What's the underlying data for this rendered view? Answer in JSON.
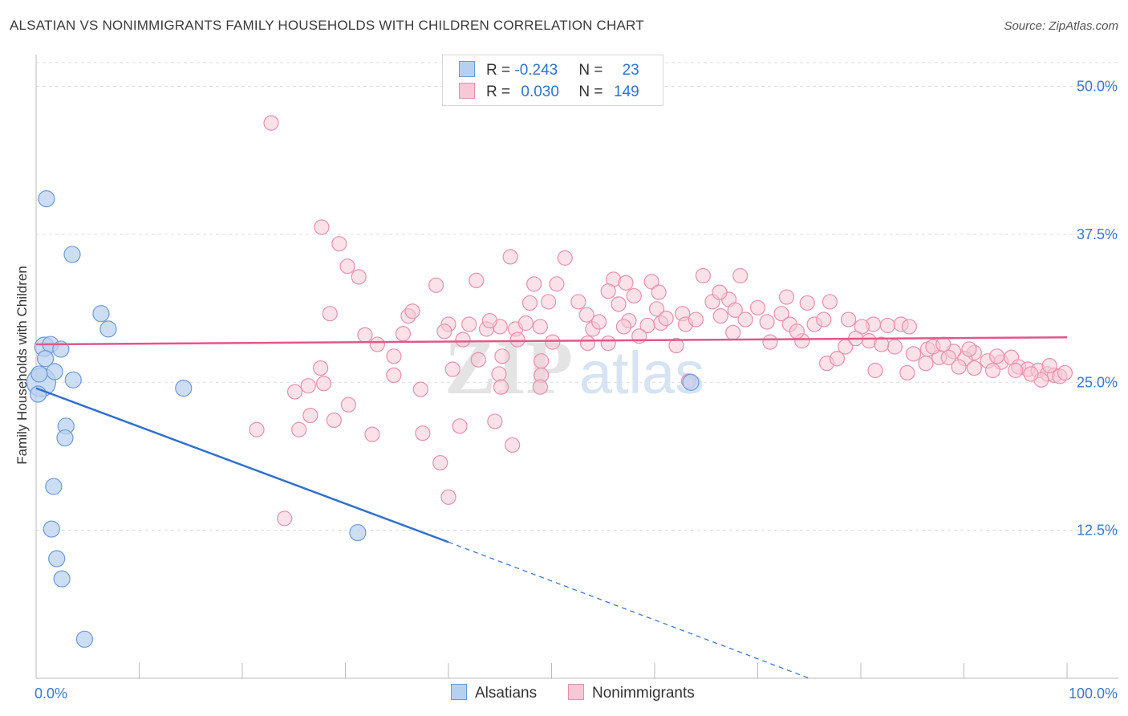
{
  "title": "ALSATIAN VS NONIMMIGRANTS FAMILY HOUSEHOLDS WITH CHILDREN CORRELATION CHART",
  "source": "Source: ZipAtlas.com",
  "colors": {
    "alsatians_fill": "#b8d0f0",
    "alsatians_stroke": "#6a9ad8",
    "alsatians_line": "#2f6fd0",
    "nonimm_fill": "#f8c8d6",
    "nonimm_stroke": "#e890ac",
    "nonimm_line": "#e0588a",
    "axis_label": "#3a78c8",
    "grid": "#dddddd"
  },
  "legend": {
    "row1": {
      "r_label": "R = ",
      "r_value": "-0.243",
      "n_label": "N = ",
      "n_value": "23"
    },
    "row2": {
      "r_label": "R = ",
      "r_value": "0.030",
      "n_label": "N = ",
      "n_value": "149"
    }
  },
  "bottom_legend": {
    "series1": "Alsatians",
    "series2": "Nonimmigrants"
  },
  "watermark": {
    "zip": "ZIP",
    "atlas": "atlas"
  },
  "chart_data": {
    "type": "scatter",
    "title": "ALSATIAN VS NONIMMIGRANTS FAMILY HOUSEHOLDS WITH CHILDREN CORRELATION CHART",
    "xlabel": "",
    "ylabel": "Family Households with Children",
    "xlim": [
      0,
      100
    ],
    "ylim": [
      0,
      52
    ],
    "x_tick_labels": [
      "0.0%",
      "100.0%"
    ],
    "y_ticks": [
      12.5,
      25.0,
      37.5,
      50.0
    ],
    "y_tick_labels": [
      "12.5%",
      "25.0%",
      "37.5%",
      "50.0%"
    ],
    "grid": true,
    "series": [
      {
        "name": "Alsatians",
        "R": -0.243,
        "N": 23,
        "trend": {
          "x0": 0,
          "y0": 24.5,
          "x1": 40,
          "y1": 11.5,
          "dashed_to_x": 75,
          "dashed_to_y": 0
        },
        "points": [
          [
            0.5,
            25.0,
            18
          ],
          [
            1.0,
            40.5,
            10
          ],
          [
            3.5,
            35.8,
            10
          ],
          [
            6.3,
            30.8,
            10
          ],
          [
            7.0,
            29.5,
            10
          ],
          [
            0.8,
            28.0,
            12
          ],
          [
            1.4,
            28.2,
            10
          ],
          [
            2.4,
            27.8,
            10
          ],
          [
            0.9,
            27.0,
            10
          ],
          [
            1.8,
            25.9,
            10
          ],
          [
            3.6,
            25.2,
            10
          ],
          [
            0.3,
            25.7,
            10
          ],
          [
            14.3,
            24.5,
            10
          ],
          [
            0.2,
            24.0,
            10
          ],
          [
            2.9,
            21.3,
            10
          ],
          [
            2.8,
            20.3,
            10
          ],
          [
            1.7,
            16.2,
            10
          ],
          [
            1.5,
            12.6,
            10
          ],
          [
            2.0,
            10.1,
            10
          ],
          [
            2.5,
            8.4,
            10
          ],
          [
            4.7,
            3.3,
            10
          ],
          [
            31.2,
            12.3,
            10
          ],
          [
            63.5,
            25.0,
            10
          ]
        ]
      },
      {
        "name": "Nonimmigrants",
        "R": 0.03,
        "N": 149,
        "trend": {
          "x0": 0,
          "y0": 28.2,
          "x1": 100,
          "y1": 28.8
        },
        "points": [
          [
            22.8,
            46.9
          ],
          [
            27.7,
            38.1
          ],
          [
            29.4,
            36.7
          ],
          [
            30.2,
            34.8
          ],
          [
            31.3,
            33.9
          ],
          [
            46.0,
            35.6
          ],
          [
            51.3,
            35.5
          ],
          [
            38.8,
            33.2
          ],
          [
            42.7,
            33.6
          ],
          [
            48.3,
            33.3
          ],
          [
            50.5,
            33.3
          ],
          [
            56.0,
            33.7
          ],
          [
            59.7,
            33.5
          ],
          [
            64.7,
            34.0
          ],
          [
            68.3,
            34.0
          ],
          [
            28.5,
            30.8
          ],
          [
            36.1,
            30.6
          ],
          [
            40.0,
            29.9
          ],
          [
            35.6,
            29.1
          ],
          [
            43.7,
            29.5
          ],
          [
            45.0,
            29.7
          ],
          [
            47.9,
            31.7
          ],
          [
            49.7,
            31.8
          ],
          [
            53.4,
            30.7
          ],
          [
            55.5,
            32.7
          ],
          [
            56.5,
            31.6
          ],
          [
            57.5,
            30.2
          ],
          [
            60.2,
            31.2
          ],
          [
            60.6,
            30.0
          ],
          [
            62.7,
            30.8
          ],
          [
            65.6,
            31.8
          ],
          [
            67.2,
            32.0
          ],
          [
            67.8,
            31.1
          ],
          [
            70.0,
            31.3
          ],
          [
            72.3,
            30.8
          ],
          [
            74.8,
            31.7
          ],
          [
            77.0,
            31.8
          ],
          [
            78.8,
            30.3
          ],
          [
            81.2,
            29.9
          ],
          [
            83.9,
            29.9
          ],
          [
            84.7,
            29.7
          ],
          [
            39.6,
            29.3
          ],
          [
            42.0,
            29.9
          ],
          [
            46.5,
            29.5
          ],
          [
            47.5,
            30.0
          ],
          [
            48.9,
            29.7
          ],
          [
            54.0,
            29.5
          ],
          [
            54.6,
            30.1
          ],
          [
            57.0,
            29.7
          ],
          [
            59.3,
            29.8
          ],
          [
            61.1,
            30.4
          ],
          [
            63.0,
            29.9
          ],
          [
            66.4,
            30.6
          ],
          [
            68.8,
            30.3
          ],
          [
            70.9,
            30.1
          ],
          [
            73.1,
            29.9
          ],
          [
            75.5,
            29.9
          ],
          [
            76.4,
            30.3
          ],
          [
            80.1,
            29.7
          ],
          [
            82.6,
            29.8
          ],
          [
            33.1,
            28.2
          ],
          [
            41.4,
            28.6
          ],
          [
            46.7,
            28.6
          ],
          [
            53.5,
            28.3
          ],
          [
            55.5,
            28.3
          ],
          [
            62.1,
            28.1
          ],
          [
            71.2,
            28.4
          ],
          [
            74.3,
            28.5
          ],
          [
            78.5,
            28.0
          ],
          [
            80.8,
            28.5
          ],
          [
            83.3,
            28.0
          ],
          [
            86.5,
            27.8
          ],
          [
            89.0,
            27.6
          ],
          [
            91.0,
            27.5
          ],
          [
            34.7,
            27.2
          ],
          [
            45.2,
            27.2
          ],
          [
            49.0,
            26.8
          ],
          [
            85.1,
            27.4
          ],
          [
            86.3,
            26.6
          ],
          [
            87.6,
            27.1
          ],
          [
            88.5,
            27.1
          ],
          [
            90.1,
            27.0
          ],
          [
            92.3,
            26.8
          ],
          [
            93.6,
            26.7
          ],
          [
            94.6,
            27.1
          ],
          [
            27.6,
            26.2
          ],
          [
            34.7,
            25.6
          ],
          [
            42.9,
            26.9
          ],
          [
            44.9,
            25.7
          ],
          [
            49.0,
            25.6
          ],
          [
            76.7,
            26.6
          ],
          [
            81.4,
            26.0
          ],
          [
            84.5,
            25.8
          ],
          [
            89.5,
            26.3
          ],
          [
            91.0,
            26.2
          ],
          [
            92.8,
            26.0
          ],
          [
            95.3,
            26.3
          ],
          [
            96.2,
            26.1
          ],
          [
            97.2,
            26.0
          ],
          [
            98.1,
            25.7
          ],
          [
            98.8,
            25.6
          ],
          [
            99.3,
            25.5
          ],
          [
            26.4,
            24.7
          ],
          [
            27.9,
            24.9
          ],
          [
            25.1,
            24.2
          ],
          [
            37.3,
            24.4
          ],
          [
            45.1,
            24.6
          ],
          [
            48.9,
            24.6
          ],
          [
            30.3,
            23.1
          ],
          [
            26.6,
            22.2
          ],
          [
            21.4,
            21.0
          ],
          [
            25.5,
            21.0
          ],
          [
            28.9,
            21.8
          ],
          [
            41.1,
            21.3
          ],
          [
            44.5,
            21.7
          ],
          [
            32.6,
            20.6
          ],
          [
            37.5,
            20.7
          ],
          [
            46.2,
            19.7
          ],
          [
            39.2,
            18.2
          ],
          [
            40.0,
            15.3
          ],
          [
            24.1,
            13.5
          ],
          [
            63.3,
            25.1
          ],
          [
            97.5,
            25.2
          ],
          [
            96.5,
            25.7
          ],
          [
            95.0,
            26.0
          ],
          [
            98.3,
            26.4
          ],
          [
            99.8,
            25.8
          ],
          [
            58.5,
            28.9
          ],
          [
            64.0,
            30.3
          ],
          [
            52.6,
            31.8
          ],
          [
            57.2,
            33.4
          ],
          [
            66.3,
            32.6
          ],
          [
            72.8,
            32.2
          ],
          [
            60.4,
            32.6
          ],
          [
            50.1,
            28.4
          ],
          [
            40.4,
            26.1
          ],
          [
            31.9,
            29.0
          ],
          [
            44.0,
            30.2
          ],
          [
            77.7,
            27.0
          ],
          [
            67.6,
            29.2
          ],
          [
            73.8,
            29.3
          ],
          [
            79.5,
            28.7
          ],
          [
            82.0,
            28.2
          ],
          [
            87.0,
            28.0
          ],
          [
            90.5,
            27.8
          ],
          [
            93.2,
            27.2
          ],
          [
            88.0,
            28.2
          ],
          [
            58.0,
            32.3
          ],
          [
            36.5,
            31.0
          ]
        ]
      }
    ]
  }
}
